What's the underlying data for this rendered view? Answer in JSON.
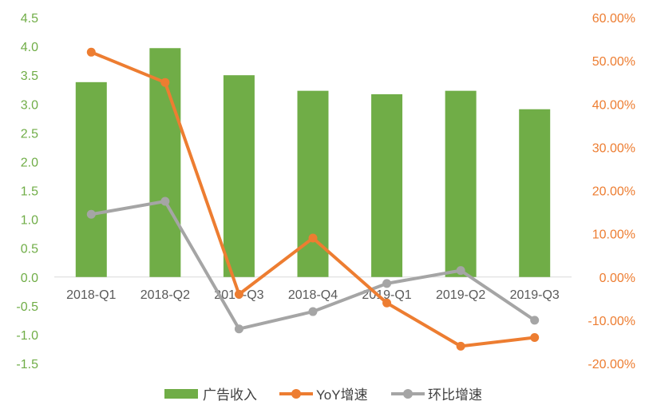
{
  "chart_data": {
    "type": "bar+line",
    "categories": [
      "2018-Q1",
      "2018-Q2",
      "2018-Q3",
      "2018-Q4",
      "2019-Q1",
      "2019-Q2",
      "2019-Q3"
    ],
    "series": [
      {
        "name": "广告收入",
        "kind": "bar",
        "axis": "left",
        "values": [
          3.38,
          3.97,
          3.5,
          3.23,
          3.17,
          3.23,
          2.91
        ]
      },
      {
        "name": "YoY增速",
        "kind": "line",
        "axis": "right",
        "values": [
          0.52,
          0.45,
          -0.04,
          0.09,
          -0.06,
          -0.16,
          -0.14
        ]
      },
      {
        "name": "环比增速",
        "kind": "line",
        "axis": "right",
        "values": [
          0.145,
          0.175,
          -0.12,
          -0.08,
          -0.015,
          0.015,
          -0.1
        ]
      }
    ],
    "left_axis": {
      "ylim": [
        -1.5,
        4.5
      ],
      "ticks": [
        4.5,
        4.0,
        3.5,
        3.0,
        2.5,
        2.0,
        1.5,
        1.0,
        0.5,
        0.0,
        -0.5,
        -1.0,
        -1.5
      ],
      "tick_labels": [
        "4.5",
        "4.0",
        "3.5",
        "3.0",
        "2.5",
        "2.0",
        "1.5",
        "1.0",
        "0.5",
        "0.0",
        "-0.5",
        "-1.0",
        "-1.5"
      ]
    },
    "right_axis": {
      "ylim": [
        -0.2,
        0.6
      ],
      "ticks": [
        0.6,
        0.5,
        0.4,
        0.3,
        0.2,
        0.1,
        0.0,
        -0.1,
        -0.2
      ],
      "tick_labels": [
        "60.00%",
        "50.00%",
        "40.00%",
        "30.00%",
        "20.00%",
        "10.00%",
        "0.00%",
        "-10.00%",
        "-20.00%"
      ]
    },
    "colors": {
      "bar": "#70ad47",
      "yoy": "#ed7d31",
      "qoq": "#a5a5a5",
      "left_axis_text": "#70ad47",
      "right_axis_text": "#ed7d31",
      "category_text": "#595959",
      "legend_text": "#404040",
      "axis_line": "#d9d9d9"
    },
    "legend": {
      "position": "bottom",
      "items": [
        "广告收入",
        "YoY增速",
        "环比增速"
      ]
    },
    "grid": false
  }
}
